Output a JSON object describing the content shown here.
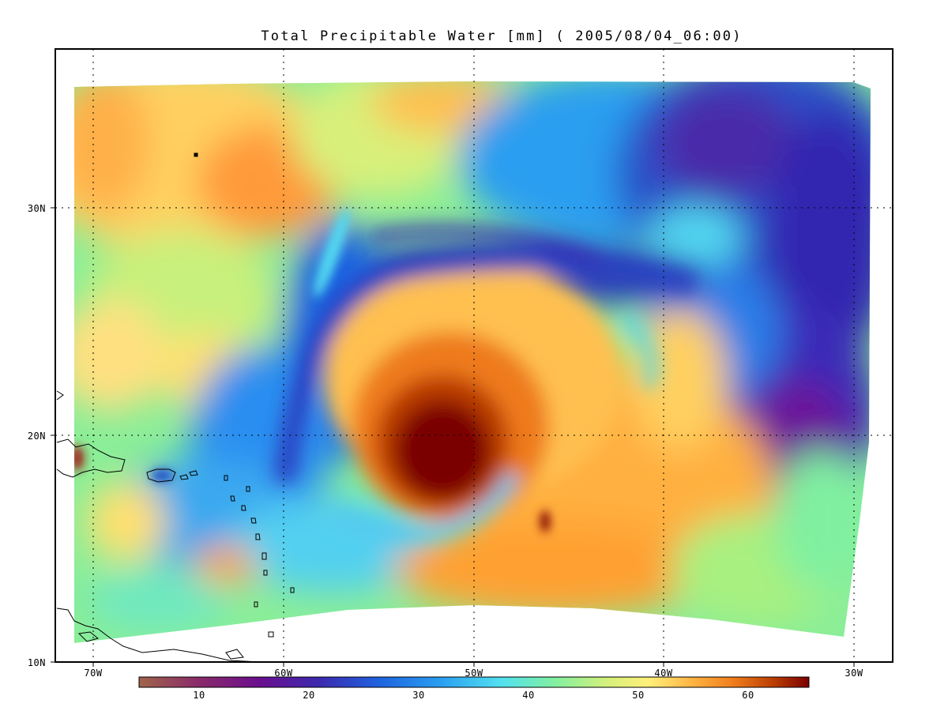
{
  "title": "Total Precipitable Water [mm]  ( 2005/08/04_06:00)",
  "axes": {
    "x_ticks": [
      "70W",
      "60W",
      "50W",
      "40W",
      "30W"
    ],
    "y_ticks": [
      "30N",
      "20N",
      "10N"
    ],
    "grid": "dotted"
  },
  "colorbar": {
    "ticks": [
      "10",
      "20",
      "30",
      "40",
      "50",
      "60"
    ],
    "min": 5,
    "max": 66,
    "colors": [
      "#a0644a",
      "#8a2a6a",
      "#6a0e8e",
      "#3c2ab0",
      "#1e64e0",
      "#2a9ef0",
      "#52e0f0",
      "#80f0a0",
      "#d6f07a",
      "#fff07a",
      "#ffb040",
      "#ee7a1a",
      "#b83a00",
      "#7a0000"
    ]
  },
  "map": {
    "lon_range": [
      "72W",
      "28W"
    ],
    "lat_range": [
      "10N",
      "36N"
    ]
  }
}
